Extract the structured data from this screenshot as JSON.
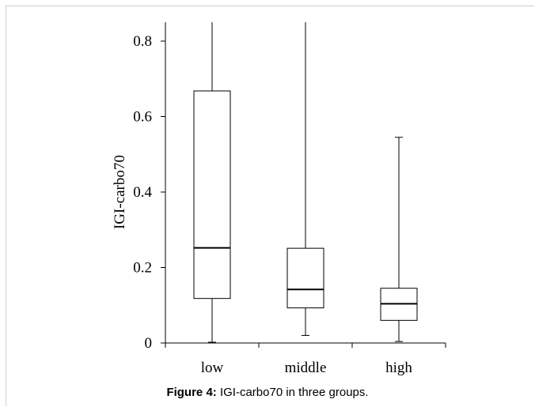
{
  "caption": {
    "label": "Figure 4:",
    "text": "IGI-carbo70 in three groups."
  },
  "chart_data": {
    "type": "boxplot",
    "ylabel": "IGI-carbo70",
    "xlabel": "",
    "ylim": [
      0,
      0.85
    ],
    "yticks": [
      0,
      0.2,
      0.4,
      0.6,
      0.8
    ],
    "ytick_labels": [
      "0",
      "0.2",
      "0.4",
      "0.6",
      "0.8"
    ],
    "categories": [
      "low",
      "middle",
      "high"
    ],
    "boxes": [
      {
        "category": "low",
        "min": 0.002,
        "q1": 0.118,
        "median": 0.252,
        "q3": 0.668,
        "max": 0.85
      },
      {
        "category": "middle",
        "min": 0.02,
        "q1": 0.093,
        "median": 0.142,
        "q3": 0.251,
        "max": 0.85
      },
      {
        "category": "high",
        "min": 0.004,
        "q1": 0.06,
        "median": 0.104,
        "q3": 0.145,
        "max": 0.545
      }
    ],
    "grid": false,
    "legend": "none",
    "line_color": "#000000"
  }
}
